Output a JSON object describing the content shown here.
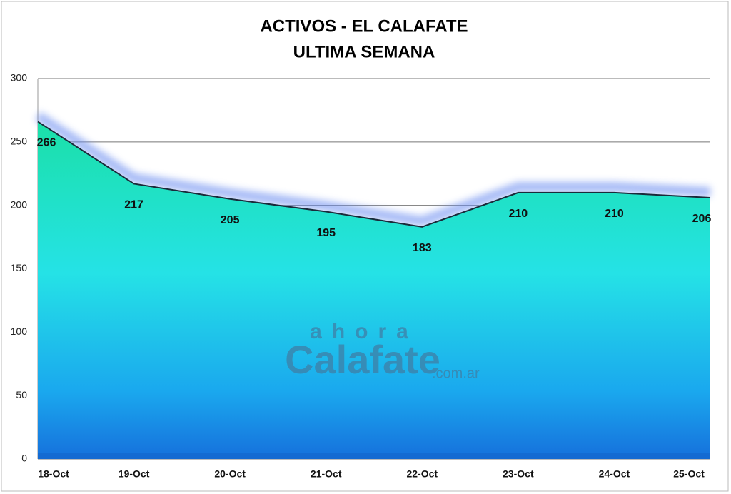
{
  "chart_data": {
    "type": "area",
    "title": [
      "ACTIVOS  - EL CALAFATE",
      "ULTIMA SEMANA"
    ],
    "categories": [
      "18-Oct",
      "19-Oct",
      "20-Oct",
      "21-Oct",
      "22-Oct",
      "23-Oct",
      "24-Oct",
      "25-Oct"
    ],
    "values": [
      266,
      217,
      205,
      195,
      183,
      210,
      210,
      206
    ],
    "ylim": [
      0,
      300
    ],
    "yticks": [
      0,
      50,
      100,
      150,
      200,
      250,
      300
    ],
    "grid": true,
    "line_color": "#1a2a3a",
    "watermark": {
      "top": "ahora",
      "main": "Calafate",
      "suffix": ".com.ar"
    }
  }
}
